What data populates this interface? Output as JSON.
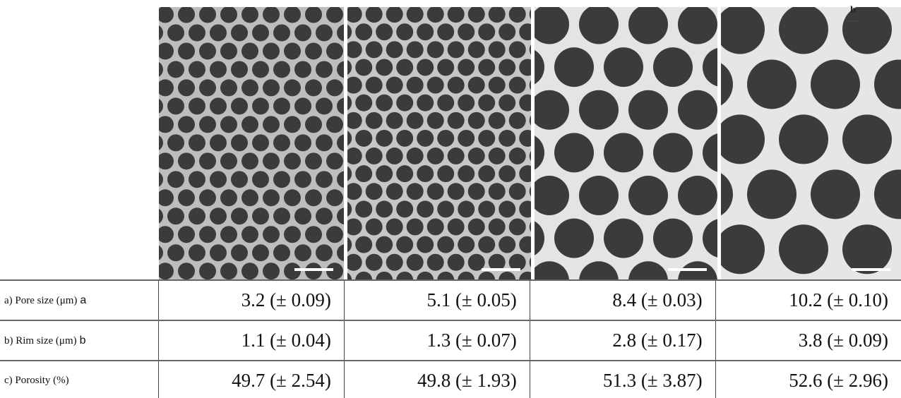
{
  "figure": {
    "annotation": "b"
  },
  "table": {
    "rows": [
      {
        "label": "a) Pore size (μm)",
        "marker": "a",
        "cells": [
          "3.2 (± 0.09)",
          "5.1 (± 0.05)",
          "8.4 (± 0.03)",
          "10.2 (± 0.10)"
        ]
      },
      {
        "label": "b) Rim size (μm)",
        "marker": "b",
        "cells": [
          "1.1 (± 0.04)",
          "1.3 (± 0.07)",
          "2.8 (± 0.17)",
          "3.8 (± 0.09)"
        ]
      },
      {
        "label": "c) Porosity (%)",
        "cells": [
          "49.7 (± 2.54)",
          "49.8 (± 1.93)",
          "51.3 (± 3.87)",
          "52.6 (± 2.96)"
        ]
      }
    ]
  }
}
